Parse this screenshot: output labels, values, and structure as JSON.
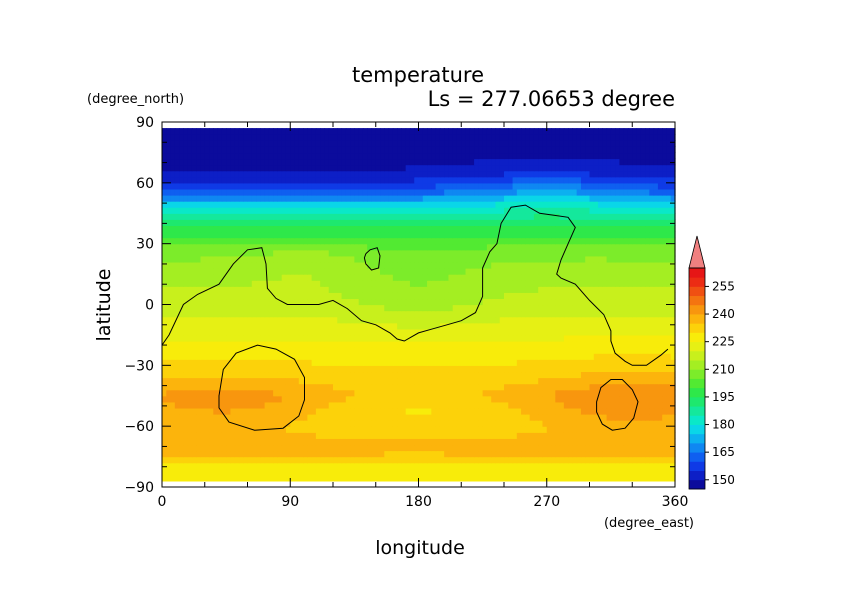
{
  "chart_data": {
    "type": "heatmap",
    "title": "temperature",
    "subtitle": "Ls = 277.06653 degree",
    "xlabel": "longitude",
    "ylabel": "latitude",
    "x_units": "(degree_east)",
    "y_units": "(degree_north)",
    "xlim": [
      0,
      360
    ],
    "ylim": [
      -90,
      90
    ],
    "data_lat_range": [
      -87,
      87
    ],
    "x_ticks": [
      0,
      90,
      180,
      270,
      360
    ],
    "y_ticks": [
      90,
      60,
      30,
      0,
      -30,
      -60,
      -90
    ],
    "x_tick_labels": [
      "0",
      "90",
      "180",
      "270",
      "360"
    ],
    "y_tick_labels": [
      "90",
      "60",
      "30",
      "0",
      "−30",
      "−60",
      "−90"
    ],
    "colorbar": {
      "labels": [
        "255",
        "240",
        "225",
        "210",
        "195",
        "180",
        "165",
        "150"
      ],
      "levels": [
        145,
        150,
        155,
        160,
        165,
        170,
        175,
        180,
        185,
        190,
        195,
        200,
        205,
        210,
        215,
        220,
        225,
        230,
        235,
        240,
        245,
        250,
        255,
        260
      ],
      "colors": [
        "#0b0b9c",
        "#0d1fc6",
        "#0f3ae6",
        "#0f5ff0",
        "#0f87f2",
        "#0cb0f0",
        "#0ad6e8",
        "#0ae8c8",
        "#14e89c",
        "#1ee86e",
        "#2ee84a",
        "#52ea32",
        "#7cec2a",
        "#a4ee22",
        "#c8f01c",
        "#e6f014",
        "#f8ec0a",
        "#fcd20a",
        "#fcb40c",
        "#f8960e",
        "#f47410",
        "#f05012",
        "#ec2c14",
        "#e61616"
      ],
      "overflow_color": "#f08080"
    },
    "field": {
      "lat_profile": [
        {
          "lat": -87,
          "t": 229
        },
        {
          "lat": -78,
          "t": 229
        },
        {
          "lat": -72,
          "t": 237
        },
        {
          "lat": -60,
          "t": 233
        },
        {
          "lat": -45,
          "t": 238
        },
        {
          "lat": -35,
          "t": 232
        },
        {
          "lat": -22,
          "t": 227
        },
        {
          "lat": -10,
          "t": 222
        },
        {
          "lat": 0,
          "t": 218
        },
        {
          "lat": 12,
          "t": 214
        },
        {
          "lat": 25,
          "t": 209
        },
        {
          "lat": 38,
          "t": 195
        },
        {
          "lat": 48,
          "t": 178
        },
        {
          "lat": 56,
          "t": 162
        },
        {
          "lat": 64,
          "t": 151
        },
        {
          "lat": 75,
          "t": 147
        },
        {
          "lat": 87,
          "t": 146
        }
      ],
      "anomalies": [
        {
          "lon": 45,
          "lat": -48,
          "rlon": 60,
          "rlat": 18,
          "dt": 5
        },
        {
          "lon": 330,
          "lat": -48,
          "rlon": 65,
          "rlat": 20,
          "dt": 7
        },
        {
          "lon": 180,
          "lat": 5,
          "rlon": 55,
          "rlat": 18,
          "dt": -5
        },
        {
          "lon": 270,
          "lat": 55,
          "rlon": 60,
          "rlat": 15,
          "dt": 8
        },
        {
          "lon": 180,
          "lat": -50,
          "rlon": 70,
          "rlat": 10,
          "dt": -6
        },
        {
          "lon": 100,
          "lat": 20,
          "rlon": 35,
          "rlat": 12,
          "dt": 3
        }
      ]
    },
    "contours": [
      {
        "name": "main",
        "points": [
          [
            0,
            -20
          ],
          [
            5,
            -15
          ],
          [
            15,
            0
          ],
          [
            25,
            5
          ],
          [
            40,
            10
          ],
          [
            50,
            20
          ],
          [
            60,
            27
          ],
          [
            70,
            28
          ],
          [
            73,
            20
          ],
          [
            74,
            8
          ],
          [
            80,
            3
          ],
          [
            88,
            0
          ],
          [
            100,
            0
          ],
          [
            110,
            0
          ],
          [
            120,
            2
          ],
          [
            130,
            -2
          ],
          [
            140,
            -8
          ],
          [
            150,
            -10
          ],
          [
            160,
            -14
          ],
          [
            165,
            -17
          ],
          [
            170,
            -18
          ],
          [
            175,
            -16
          ],
          [
            180,
            -14
          ],
          [
            190,
            -12
          ],
          [
            200,
            -10
          ],
          [
            210,
            -8
          ],
          [
            220,
            -4
          ],
          [
            225,
            4
          ],
          [
            225,
            18
          ],
          [
            230,
            26
          ],
          [
            235,
            30
          ],
          [
            238,
            40
          ],
          [
            245,
            48
          ],
          [
            255,
            49
          ],
          [
            265,
            45
          ],
          [
            275,
            44
          ],
          [
            285,
            43
          ],
          [
            290,
            38
          ],
          [
            285,
            30
          ],
          [
            280,
            22
          ],
          [
            277,
            15
          ],
          [
            280,
            13
          ],
          [
            290,
            10
          ],
          [
            300,
            2
          ],
          [
            310,
            -5
          ],
          [
            315,
            -13
          ],
          [
            315,
            -18
          ],
          [
            318,
            -24
          ],
          [
            325,
            -28
          ],
          [
            330,
            -30
          ],
          [
            340,
            -30
          ],
          [
            350,
            -25
          ],
          [
            355,
            -22
          ]
        ]
      },
      {
        "name": "island",
        "points": [
          [
            143,
            25
          ],
          [
            146,
            27
          ],
          [
            151,
            28
          ],
          [
            153,
            24
          ],
          [
            152,
            18
          ],
          [
            147,
            17
          ],
          [
            143,
            20
          ],
          [
            142,
            23
          ],
          [
            143,
            25
          ]
        ]
      },
      {
        "name": "left-basin",
        "points": [
          [
            40,
            -45
          ],
          [
            43,
            -32
          ],
          [
            52,
            -24
          ],
          [
            67,
            -20
          ],
          [
            80,
            -22
          ],
          [
            93,
            -27
          ],
          [
            100,
            -36
          ],
          [
            100,
            -47
          ],
          [
            96,
            -55
          ],
          [
            85,
            -61
          ],
          [
            65,
            -62
          ],
          [
            47,
            -58
          ],
          [
            40,
            -51
          ],
          [
            40,
            -45
          ]
        ]
      },
      {
        "name": "right-basin",
        "points": [
          [
            305,
            -48
          ],
          [
            308,
            -41
          ],
          [
            315,
            -37
          ],
          [
            323,
            -37
          ],
          [
            330,
            -42
          ],
          [
            334,
            -48
          ],
          [
            331,
            -56
          ],
          [
            325,
            -61
          ],
          [
            316,
            -62
          ],
          [
            309,
            -59
          ],
          [
            305,
            -53
          ],
          [
            305,
            -48
          ]
        ]
      }
    ]
  }
}
